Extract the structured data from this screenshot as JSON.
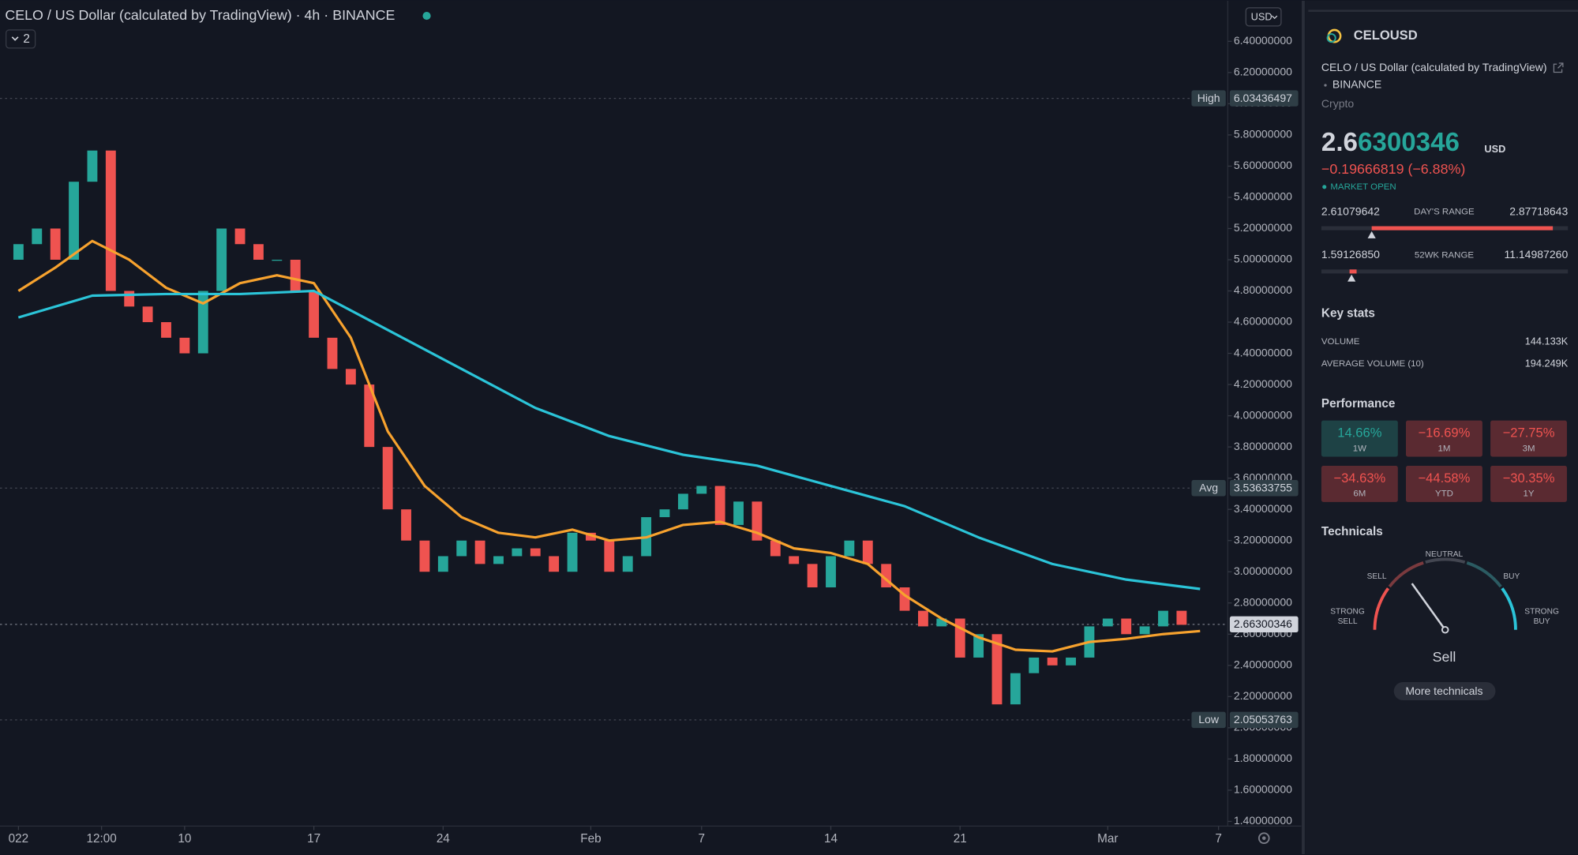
{
  "header": {
    "title": "CELO / US Dollar (calculated by TradingView) · 4h · BINANCE",
    "indicators": "2",
    "currency": "USD"
  },
  "chart_data": {
    "type": "candlestick",
    "up_color": "#26a69a",
    "down_color": "#ef5350",
    "x": [
      0,
      1,
      2,
      3,
      4,
      5,
      6,
      7,
      8,
      9,
      10,
      11,
      12,
      13,
      14,
      15,
      16,
      17,
      18,
      19,
      20,
      21,
      22,
      23,
      24,
      25,
      26,
      27,
      28,
      29,
      30,
      31,
      32,
      33,
      34,
      35,
      36,
      37,
      38,
      39,
      40,
      41,
      42,
      43,
      44,
      45,
      46,
      47,
      48,
      49,
      50,
      51,
      52,
      53,
      54,
      55,
      56,
      57,
      58,
      59,
      60,
      61,
      62,
      63
    ],
    "open": [
      5.0,
      5.1,
      5.2,
      5.0,
      5.5,
      5.7,
      4.8,
      4.7,
      4.6,
      4.5,
      4.4,
      4.8,
      5.2,
      5.1,
      5.0,
      5.0,
      4.8,
      4.5,
      4.3,
      4.2,
      3.8,
      3.4,
      3.2,
      3.0,
      3.1,
      3.2,
      3.05,
      3.1,
      3.15,
      3.1,
      3.0,
      3.25,
      3.2,
      3.0,
      3.1,
      3.35,
      3.4,
      3.5,
      3.55,
      3.3,
      3.45,
      3.2,
      3.1,
      3.05,
      2.9,
      3.1,
      3.2,
      3.05,
      2.9,
      2.75,
      2.65,
      2.7,
      2.45,
      2.6,
      2.15,
      2.35,
      2.45,
      2.4,
      2.45,
      2.65,
      2.7,
      2.6,
      2.65,
      2.75
    ],
    "values": [
      5.1,
      5.2,
      5.0,
      5.5,
      5.7,
      4.8,
      4.7,
      4.6,
      4.5,
      4.4,
      4.8,
      5.2,
      5.1,
      5.0,
      5.0,
      4.8,
      4.5,
      4.3,
      4.2,
      3.8,
      3.4,
      3.2,
      3.0,
      3.1,
      3.2,
      3.05,
      3.1,
      3.15,
      3.1,
      3.0,
      3.25,
      3.2,
      3.0,
      3.1,
      3.35,
      3.4,
      3.5,
      3.55,
      3.3,
      3.45,
      3.2,
      3.1,
      3.05,
      2.9,
      3.1,
      3.2,
      3.05,
      2.9,
      2.75,
      2.65,
      2.7,
      2.45,
      2.6,
      2.15,
      2.35,
      2.45,
      2.4,
      2.45,
      2.65,
      2.7,
      2.6,
      2.65,
      2.75,
      2.66
    ],
    "ma_lines": [
      {
        "color": "#f7a22e",
        "x": [
          0,
          2,
          4,
          6,
          8,
          10,
          12,
          14,
          16,
          18,
          20,
          22,
          24,
          26,
          28,
          30,
          32,
          34,
          36,
          38,
          40,
          42,
          44,
          46,
          48,
          50,
          52,
          54,
          56,
          58,
          60,
          62,
          64
        ],
        "values": [
          4.8,
          4.95,
          5.12,
          5.0,
          4.82,
          4.72,
          4.85,
          4.9,
          4.85,
          4.5,
          3.9,
          3.55,
          3.35,
          3.25,
          3.22,
          3.27,
          3.2,
          3.22,
          3.3,
          3.32,
          3.25,
          3.15,
          3.12,
          3.05,
          2.85,
          2.7,
          2.58,
          2.5,
          2.49,
          2.55,
          2.57,
          2.6,
          2.62
        ]
      },
      {
        "color": "#2bc4d8",
        "x": [
          0,
          4,
          8,
          12,
          16,
          20,
          24,
          28,
          32,
          36,
          40,
          44,
          48,
          52,
          56,
          60,
          64
        ],
        "values": [
          4.63,
          4.77,
          4.78,
          4.78,
          4.8,
          4.55,
          4.3,
          4.05,
          3.87,
          3.75,
          3.68,
          3.55,
          3.42,
          3.22,
          3.05,
          2.95,
          2.89
        ]
      }
    ],
    "price_lines": [
      {
        "name": "High",
        "value": 6.03436497,
        "value_label": "6.03436497"
      },
      {
        "name": "Avg",
        "value": 3.53633755,
        "value_label": "3.53633755"
      },
      {
        "value": 2.66300346,
        "value_label": "2.66300346"
      },
      {
        "name": "Low",
        "value": 2.05053763,
        "value_label": "2.05053763"
      }
    ],
    "xlim": [
      -1,
      65.5
    ],
    "xticks": [
      {
        "value": 0,
        "label": "022"
      },
      {
        "value": 4.5,
        "label": "12:00"
      },
      {
        "value": 9,
        "label": "10"
      },
      {
        "value": 16,
        "label": "17"
      },
      {
        "value": 23,
        "label": "24"
      },
      {
        "value": 31,
        "label": "Feb"
      },
      {
        "value": 37,
        "label": "7"
      },
      {
        "value": 44,
        "label": "14"
      },
      {
        "value": 51,
        "label": "21"
      },
      {
        "value": 59,
        "label": "Mar"
      },
      {
        "value": 65,
        "label": "7"
      }
    ],
    "ylim": [
      1.37,
      6.66
    ],
    "yticks": [
      {
        "value": 6.4,
        "label": "6.40000000"
      },
      {
        "value": 6.2,
        "label": "6.20000000"
      },
      {
        "value": 6.0,
        "label": "6.00000000"
      },
      {
        "value": 5.8,
        "label": "5.80000000"
      },
      {
        "value": 5.6,
        "label": "5.60000000"
      },
      {
        "value": 5.4,
        "label": "5.40000000"
      },
      {
        "value": 5.2,
        "label": "5.20000000"
      },
      {
        "value": 5.0,
        "label": "5.00000000"
      },
      {
        "value": 4.8,
        "label": "4.80000000"
      },
      {
        "value": 4.6,
        "label": "4.60000000"
      },
      {
        "value": 4.4,
        "label": "4.40000000"
      },
      {
        "value": 4.2,
        "label": "4.20000000"
      },
      {
        "value": 4.0,
        "label": "4.00000000"
      },
      {
        "value": 3.8,
        "label": "3.80000000"
      },
      {
        "value": 3.6,
        "label": "3.60000000"
      },
      {
        "value": 3.4,
        "label": "3.40000000"
      },
      {
        "value": 3.2,
        "label": "3.20000000"
      },
      {
        "value": 3.0,
        "label": "3.00000000"
      },
      {
        "value": 2.8,
        "label": "2.80000000"
      },
      {
        "value": 2.6,
        "label": "2.60000000"
      },
      {
        "value": 2.4,
        "label": "2.40000000"
      },
      {
        "value": 2.2,
        "label": "2.20000000"
      },
      {
        "value": 2.0,
        "label": "2.00000000"
      },
      {
        "value": 1.8,
        "label": "1.80000000"
      },
      {
        "value": 1.6,
        "label": "1.60000000"
      },
      {
        "value": 1.4,
        "label": "1.40000000"
      }
    ]
  },
  "side_panel": {
    "symbol": "CELOUSD",
    "name": "CELO / US Dollar (calculated by TradingView)",
    "exchange": "BINANCE",
    "kind": "Crypto",
    "price_parts": [
      "2.6",
      "6300346"
    ],
    "price_currency": "USD",
    "change": "−0.19666819 (−6.88%)",
    "status": "MARKET OPEN",
    "days_range": {
      "low": "2.61079642",
      "label": "DAY'S RANGE",
      "high": "2.87718643"
    },
    "wk52_range": {
      "low": "1.59126850",
      "label": "52WK RANGE",
      "high": "11.14987260"
    },
    "key_stats": {
      "title": "Key stats",
      "rows": [
        [
          "VOLUME",
          "144.133K"
        ],
        [
          "AVERAGE VOLUME (10)",
          "194.249K"
        ]
      ]
    },
    "performance": {
      "title": "Performance",
      "items": [
        [
          "14.66%",
          "1W"
        ],
        [
          "−16.69%",
          "1M"
        ],
        [
          "−27.75%",
          "3M"
        ],
        [
          "−34.63%",
          "6M"
        ],
        [
          "−44.58%",
          "YTD"
        ],
        [
          "−30.35%",
          "1Y"
        ]
      ]
    },
    "technicals": {
      "title": "Technicals",
      "labels": [
        "STRONG",
        "SELL",
        "SELL",
        "NEUTRAL",
        "BUY",
        "STRONG",
        "BUY"
      ],
      "result": "Sell",
      "button": "More technicals"
    }
  }
}
